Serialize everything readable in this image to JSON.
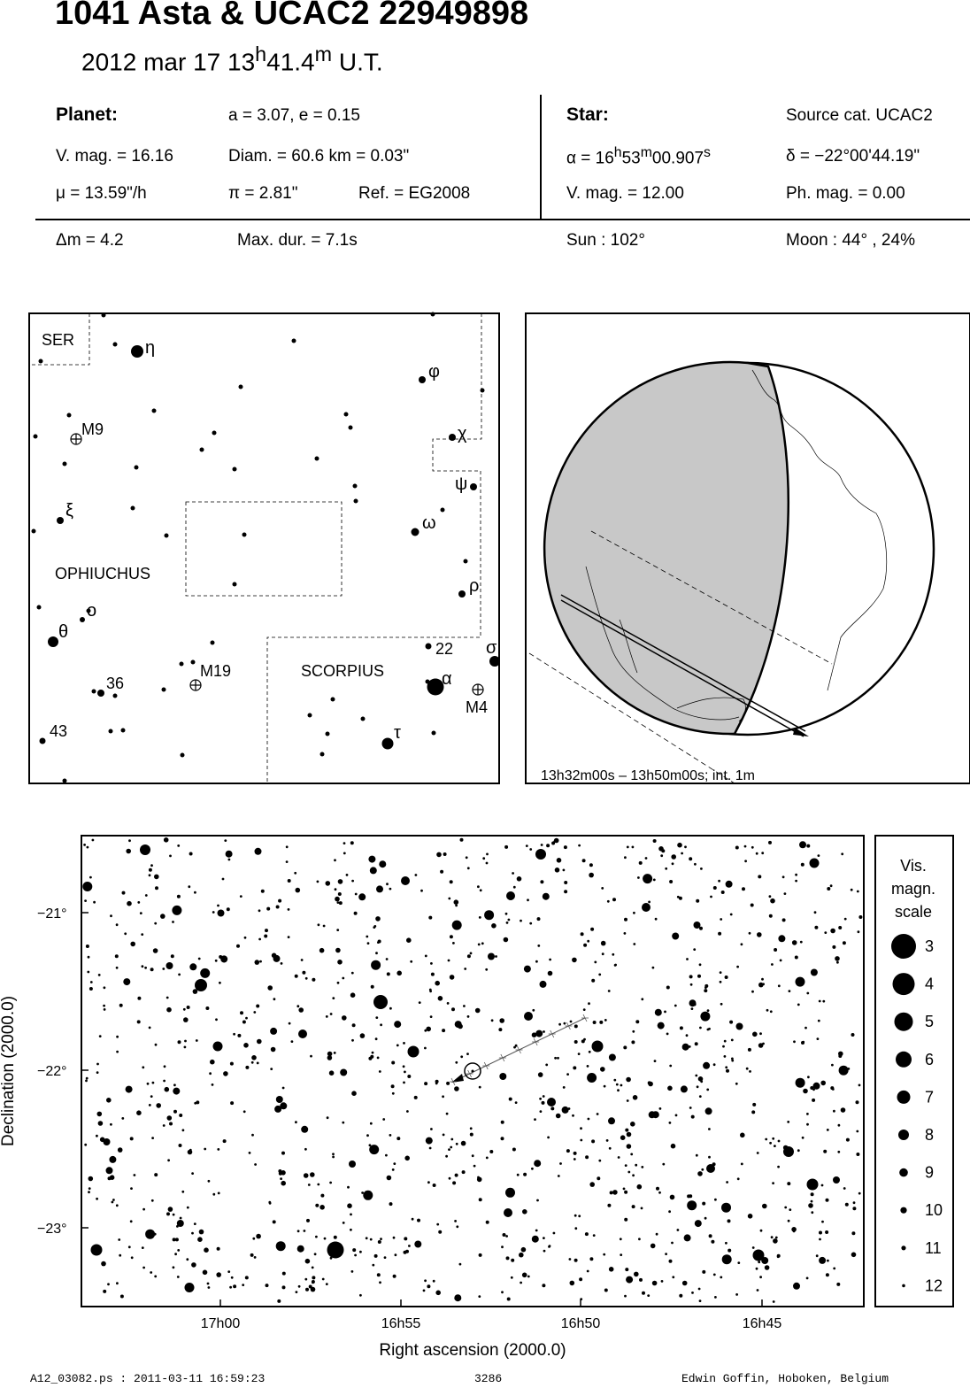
{
  "header": {
    "title": "1041 Asta  &  UCAC2 22949898",
    "date": "2012 mar 17  13",
    "time_h": "h",
    "time_min": "41.4",
    "time_m": "m",
    "time_ut": " U.T."
  },
  "info": {
    "planet_label": "Planet:",
    "planet_orbit": "a = 3.07, e = 0.15",
    "planet_vmag": "V. mag. = 16.16",
    "planet_diam": "Diam. = 60.6 km = 0.03\"",
    "planet_mu": "μ =  13.59\"/h",
    "planet_pi": "π =  2.81\"",
    "planet_ref": "Ref. = EG2008",
    "star_label": "Star:",
    "star_cat": "Source cat.  UCAC2",
    "star_ra_pre": "α = 16",
    "star_ra_h": "h",
    "star_ra_min": "53",
    "star_ra_m": "m",
    "star_ra_sec": "00.907",
    "star_ra_s": "s",
    "star_dec": "δ = −22°00'44.19\"",
    "star_vmag": "V. mag. = 12.00",
    "star_phmag": "Ph. mag. =  0.00",
    "dm": "Δm = 4.2",
    "maxdur": "Max. dur. = 7.1s",
    "sun": "Sun : 102°",
    "moon": "Moon :  44° , 24%"
  },
  "constellation_chart": {
    "labels": [
      "SER",
      "OPHIUCHUS",
      "SCORPIUS",
      "M9",
      "M19",
      "M4",
      "36",
      "43",
      "22"
    ],
    "greek": [
      "η",
      "φ",
      "χ",
      "ψ",
      "ξ",
      "ω",
      "ρ",
      "ο",
      "θ",
      "σ",
      "α",
      "τ"
    ]
  },
  "globe": {
    "caption": "13h32m00s – 13h50m00s; int.  1m"
  },
  "star_chart": {
    "xlabel": "Right ascension (2000.0)",
    "ylabel": "Declination (2000.0)",
    "x_ticks": [
      "17h00",
      "16h55",
      "16h50",
      "16h45"
    ],
    "y_ticks": [
      "−21°",
      "−22°",
      "−23°"
    ],
    "scale_title": [
      "Vis.",
      "magn.",
      "scale"
    ],
    "scale_mags": [
      "3",
      "4",
      "5",
      "6",
      "7",
      "8",
      "9",
      "10",
      "11",
      "12"
    ]
  },
  "footer": {
    "file": "A12_03082.ps : 2011-03-11 16:59:23",
    "number": "3286",
    "author": "Edwin Goffin, Hoboken, Belgium"
  }
}
